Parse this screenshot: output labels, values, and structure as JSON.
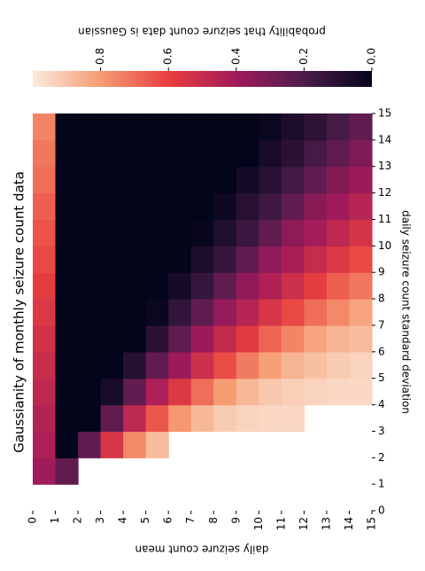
{
  "chart_data": {
    "type": "heatmap",
    "title": "Gaussianity of monthly seizure count data",
    "xlabel": "daily seizure count mean",
    "ylabel": "daily seizure count standard deviation",
    "xlim": [
      0,
      15
    ],
    "ylim": [
      0,
      15
    ],
    "xticks": [
      0,
      1,
      2,
      3,
      4,
      5,
      6,
      7,
      8,
      9,
      10,
      11,
      12,
      13,
      14,
      15
    ],
    "yticks": [
      0,
      1,
      2,
      3,
      4,
      5,
      6,
      7,
      8,
      9,
      10,
      11,
      12,
      13,
      14,
      15
    ],
    "colormap": [
      "#03051a",
      "#4c1d4b",
      "#a11a5b",
      "#e83f3f",
      "#f69c73",
      "#faebdd"
    ],
    "colorbar": {
      "label": "probability that seizure count data is Gaussian",
      "lim": [
        0,
        1
      ],
      "ticks": [
        {
          "value": 0,
          "label": "0.0"
        },
        {
          "value": 0.2,
          "label": "0.2"
        },
        {
          "value": 0.4,
          "label": "0.4"
        },
        {
          "value": 0.6,
          "label": "0.6"
        },
        {
          "value": 0.8,
          "label": "0.8"
        }
      ]
    },
    "z": [
      [
        null,
        null,
        null,
        null,
        null,
        null,
        null,
        null,
        null,
        null,
        null,
        null,
        null,
        null,
        null
      ],
      [
        0.4,
        0.25,
        null,
        null,
        null,
        null,
        null,
        null,
        null,
        null,
        null,
        null,
        null,
        null,
        null
      ],
      [
        0.43,
        0,
        0.25,
        0.55,
        0.76,
        0.88,
        null,
        null,
        null,
        null,
        null,
        null,
        null,
        null,
        null
      ],
      [
        0.45,
        0,
        0,
        0.25,
        0.48,
        0.65,
        0.79,
        0.87,
        0.92,
        0.94,
        0.95,
        0.95,
        null,
        null,
        null
      ],
      [
        0.48,
        0,
        0,
        0.06,
        0.25,
        0.43,
        0.57,
        0.7,
        0.8,
        0.87,
        0.91,
        0.93,
        0.94,
        0.95,
        0.95
      ],
      [
        0.51,
        0,
        0,
        0,
        0.09,
        0.25,
        0.39,
        0.52,
        0.63,
        0.73,
        0.81,
        0.86,
        0.89,
        0.92,
        0.94
      ],
      [
        0.53,
        0,
        0,
        0,
        0,
        0.11,
        0.25,
        0.39,
        0.49,
        0.58,
        0.68,
        0.75,
        0.82,
        0.86,
        0.88
      ],
      [
        0.56,
        0,
        0,
        0,
        0,
        0.02,
        0.13,
        0.25,
        0.37,
        0.46,
        0.55,
        0.62,
        0.7,
        0.76,
        0.82
      ],
      [
        0.59,
        0,
        0,
        0,
        0,
        0,
        0.05,
        0.14,
        0.25,
        0.36,
        0.44,
        0.52,
        0.59,
        0.67,
        0.72
      ],
      [
        0.62,
        0,
        0,
        0,
        0,
        0,
        0,
        0.07,
        0.14,
        0.25,
        0.36,
        0.42,
        0.5,
        0.56,
        0.62
      ],
      [
        0.64,
        0,
        0,
        0,
        0,
        0,
        0,
        0.01,
        0.08,
        0.15,
        0.25,
        0.35,
        0.41,
        0.48,
        0.54
      ],
      [
        0.67,
        0,
        0,
        0,
        0,
        0,
        0,
        0,
        0.03,
        0.1,
        0.16,
        0.25,
        0.34,
        0.4,
        0.46
      ],
      [
        0.7,
        0,
        0,
        0,
        0,
        0,
        0,
        0,
        0,
        0.05,
        0.1,
        0.17,
        0.25,
        0.33,
        0.39
      ],
      [
        0.72,
        0,
        0,
        0,
        0,
        0,
        0,
        0,
        0,
        0,
        0.06,
        0.11,
        0.18,
        0.25,
        0.32
      ],
      [
        0.75,
        0,
        0,
        0,
        0,
        0,
        0,
        0,
        0,
        0,
        0.02,
        0.07,
        0.12,
        0.18,
        0.25
      ]
    ]
  }
}
